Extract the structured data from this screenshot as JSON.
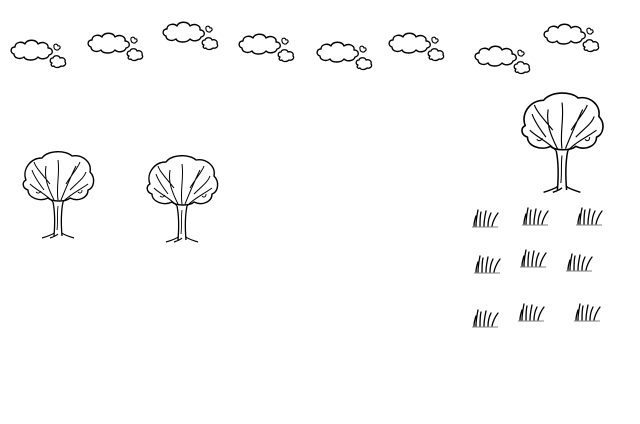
{
  "scene": {
    "background": "#ffffff",
    "ink": "#000000",
    "clouds": [
      {
        "kind": "cloud-pair"
      },
      {
        "kind": "cloud-pair"
      },
      {
        "kind": "cloud-pair"
      },
      {
        "kind": "cloud-pair"
      },
      {
        "kind": "cloud-pair"
      },
      {
        "kind": "cloud-pair"
      },
      {
        "kind": "cloud-pair"
      },
      {
        "kind": "cloud-pair"
      }
    ],
    "trees": [
      {
        "kind": "deciduous-tree"
      },
      {
        "kind": "deciduous-tree"
      },
      {
        "kind": "deciduous-tree"
      }
    ],
    "grass_tufts": [
      {
        "kind": "grass-tuft"
      },
      {
        "kind": "grass-tuft"
      },
      {
        "kind": "grass-tuft"
      },
      {
        "kind": "grass-tuft"
      },
      {
        "kind": "grass-tuft"
      },
      {
        "kind": "grass-tuft"
      },
      {
        "kind": "grass-tuft"
      },
      {
        "kind": "grass-tuft"
      },
      {
        "kind": "grass-tuft"
      }
    ]
  }
}
